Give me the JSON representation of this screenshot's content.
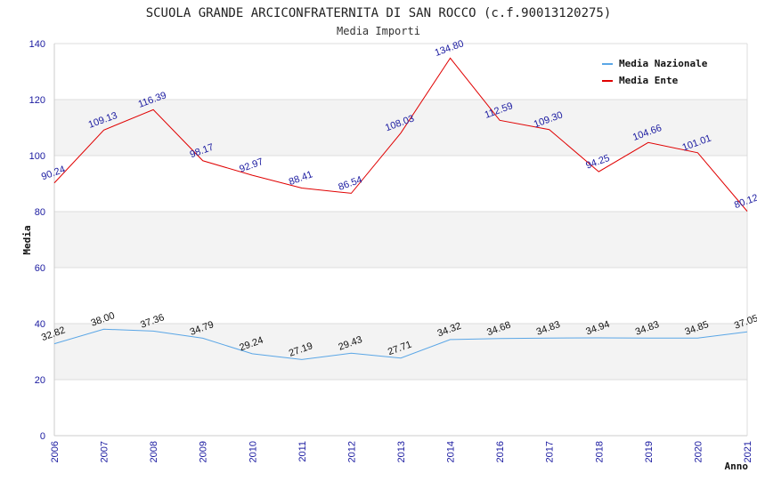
{
  "chart_data": {
    "type": "line",
    "title": "SCUOLA GRANDE ARCICONFRATERNITA DI SAN ROCCO (c.f.90013120275)",
    "subtitle": "Media Importi",
    "xlabel": "Anno",
    "ylabel": "Media",
    "ylim": [
      0,
      140
    ],
    "yticks": [
      0,
      20,
      40,
      60,
      80,
      100,
      120,
      140
    ],
    "grid": true,
    "legend_position": "top-right",
    "categories": [
      "2006",
      "2007",
      "2008",
      "2009",
      "2010",
      "2011",
      "2012",
      "2013",
      "2014",
      "2016",
      "2017",
      "2018",
      "2019",
      "2020",
      "2021"
    ],
    "series": [
      {
        "name": "Media Nazionale",
        "color": "#5aa6e6",
        "values": [
          32.82,
          38.0,
          37.36,
          34.79,
          29.24,
          27.19,
          29.43,
          27.71,
          34.32,
          34.68,
          34.83,
          34.94,
          34.83,
          34.85,
          37.05
        ],
        "labels": [
          "32.82",
          "38.00",
          "37.36",
          "34.79",
          "29.24",
          "27.19",
          "29.43",
          "27.71",
          "34.32",
          "34.68",
          "34.83",
          "34.94",
          "34.83",
          "34.85",
          "37.05"
        ]
      },
      {
        "name": "Media Ente",
        "color": "#e00000",
        "values": [
          90.24,
          109.13,
          116.39,
          98.17,
          92.97,
          88.41,
          86.54,
          108.03,
          134.8,
          112.59,
          109.3,
          94.25,
          104.66,
          101.01,
          80.12
        ],
        "labels": [
          "90.24",
          "109.13",
          "116.39",
          "98.17",
          "92.97",
          "88.41",
          "86.54",
          "108.03",
          "134.80",
          "112.59",
          "109.30",
          "94.25",
          "104.66",
          "101.01",
          "80.12"
        ]
      }
    ]
  }
}
